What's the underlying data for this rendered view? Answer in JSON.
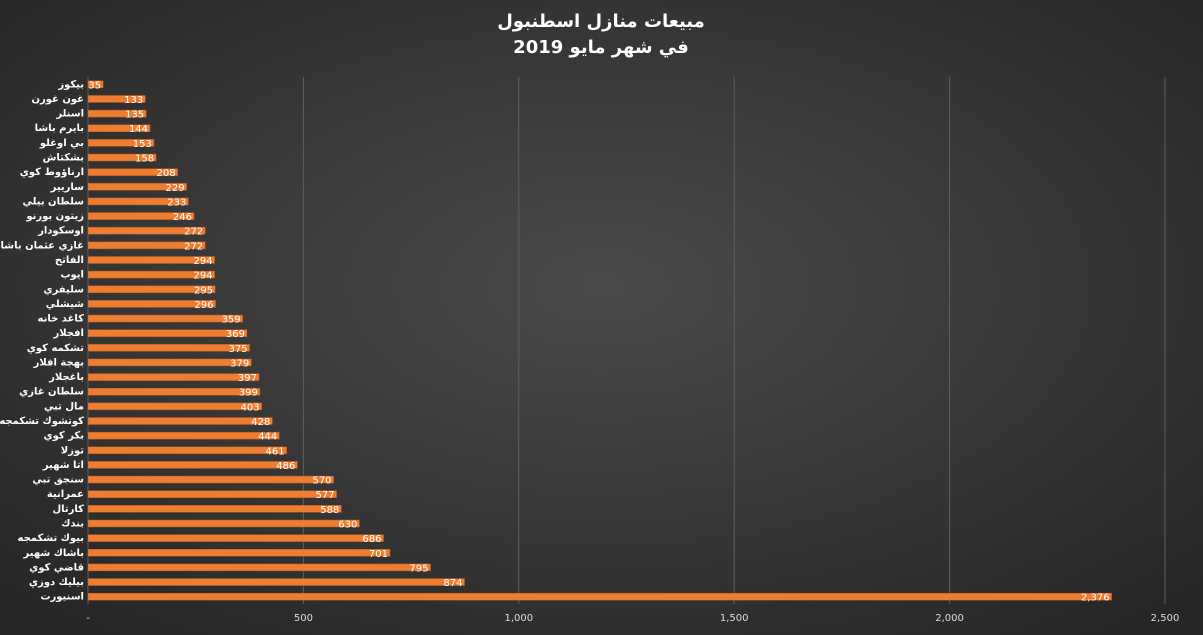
{
  "chart_data": {
    "type": "hbar",
    "title": "مبيعات منازل اسطنبول",
    "subtitle": "في شهر مايو 2019",
    "categories": [
      "بيكوز",
      "غون غورن",
      "اسنلر",
      "بايرم باشا",
      "بي اوغلو",
      "بشكتاش",
      "ارناؤوط كوي",
      "ساريير",
      "سلطان بيلي",
      "زيتون بورنو",
      "اوسكودار",
      "غازي عثمان باشا",
      "الفاتح",
      "ايوب",
      "سليفري",
      "شيشلي",
      "كاغد خانه",
      "افجلار",
      "تشكمه كوي",
      "بهجة افلار",
      "باغجلار",
      "سلطان غازي",
      "مال تبي",
      "كوتشوك تشكمجه",
      "بكر كوي",
      "توزلا",
      "اتا شهير",
      "سنجق تبي",
      "عمرانية",
      "كارتال",
      "بندك",
      "بيوك تشكمجه",
      "باشاك شهير",
      "قاضي كوي",
      "بيليك دوزي",
      "اسنيورت"
    ],
    "values": [
      35,
      133,
      135,
      144,
      153,
      158,
      208,
      229,
      233,
      246,
      272,
      272,
      294,
      294,
      295,
      296,
      359,
      369,
      375,
      379,
      397,
      399,
      403,
      428,
      444,
      461,
      486,
      570,
      577,
      588,
      630,
      686,
      701,
      795,
      874,
      2376
    ],
    "value_labels": [
      "35",
      "133",
      "135",
      "144",
      "153",
      "158",
      "208",
      "229",
      "233",
      "246",
      "272",
      "272",
      "294",
      "294",
      "295",
      "296",
      "359",
      "369",
      "375",
      "379",
      "397",
      "399",
      "403",
      "428",
      "444",
      "461",
      "486",
      "570",
      "577",
      "588",
      "630",
      "686",
      "701",
      "795",
      "874",
      "2,376"
    ],
    "color": "#ed7d31",
    "xlim": [
      0,
      2500
    ],
    "xticks": [
      {
        "value": 0,
        "label": "-"
      },
      500,
      {
        "value": 1000,
        "label": "1,000"
      },
      {
        "value": 1500,
        "label": "1,500"
      },
      {
        "value": 2000,
        "label": "2,000"
      },
      {
        "value": 2500,
        "label": "2,500"
      }
    ],
    "grid": true
  }
}
